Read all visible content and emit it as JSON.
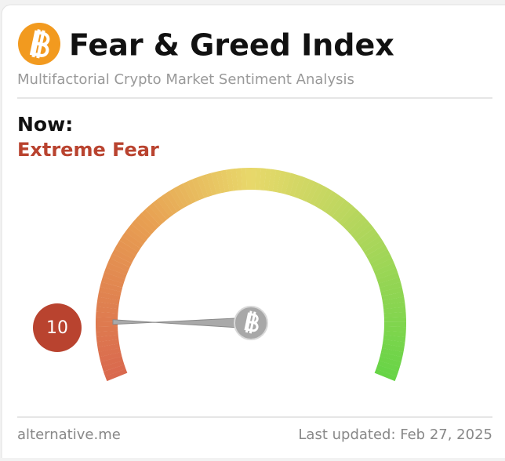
{
  "header": {
    "title": "Fear & Greed Index",
    "subtitle": "Multifactorial Crypto Market Sentiment Analysis"
  },
  "chart_data": {
    "type": "gauge",
    "label": "Now:",
    "classification": "Extreme Fear",
    "value": 10,
    "ylim": [
      0,
      100
    ],
    "color": "#b9432f"
  },
  "footer": {
    "source": "alternative.me",
    "updated": "Last updated: Feb 27, 2025"
  }
}
